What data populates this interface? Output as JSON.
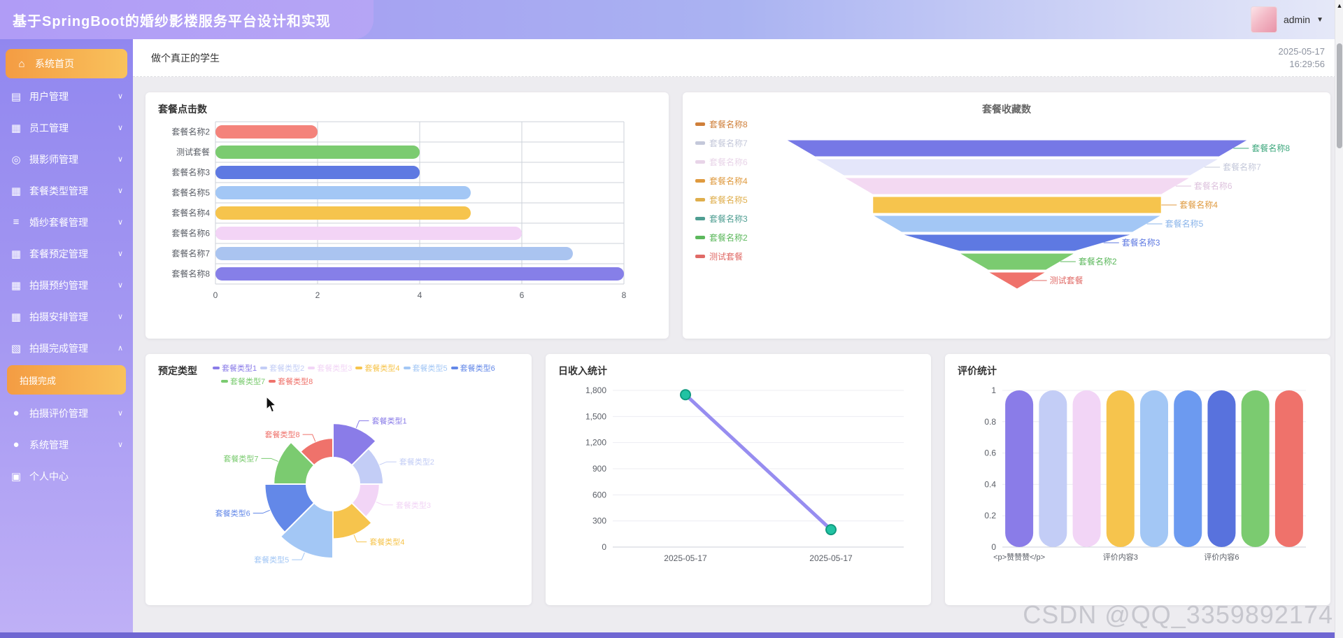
{
  "header": {
    "title": "基于SpringBoot的婚纱影楼服务平台设计和实现",
    "user": "admin",
    "caret": "▼"
  },
  "icons": {
    "chevron_down": "∨",
    "chevron_up": "∧",
    "scroll_up": "▲"
  },
  "sidebar": {
    "items": [
      {
        "label": "系统首页",
        "icon_name": "home-icon",
        "icon": "⌂",
        "active": true,
        "arrow": ""
      },
      {
        "label": "用户管理",
        "icon_name": "monitor-icon",
        "icon": "▤",
        "arrow": "down"
      },
      {
        "label": "员工管理",
        "icon_name": "grid-icon",
        "icon": "▦",
        "arrow": "down"
      },
      {
        "label": "摄影师管理",
        "icon_name": "badge-icon",
        "icon": "◎",
        "arrow": "down"
      },
      {
        "label": "套餐类型管理",
        "icon_name": "grid-icon",
        "icon": "▦",
        "arrow": "down"
      },
      {
        "label": "婚纱套餐管理",
        "icon_name": "list-icon",
        "icon": "≡",
        "arrow": "down"
      },
      {
        "label": "套餐预定管理",
        "icon_name": "grid-icon",
        "icon": "▦",
        "arrow": "down"
      },
      {
        "label": "拍摄预约管理",
        "icon_name": "grid-icon",
        "icon": "▦",
        "arrow": "down"
      },
      {
        "label": "拍摄安排管理",
        "icon_name": "grid-icon",
        "icon": "▦",
        "arrow": "down"
      },
      {
        "label": "拍摄完成管理",
        "icon_name": "chat-icon",
        "icon": "▧",
        "arrow": "up",
        "submenu": [
          {
            "label": "拍摄完成",
            "active": true
          }
        ]
      },
      {
        "label": "拍摄评价管理",
        "icon_name": "user-icon",
        "icon": "●",
        "arrow": "down"
      },
      {
        "label": "系统管理",
        "icon_name": "user-icon",
        "icon": "●",
        "arrow": "down"
      },
      {
        "label": "个人中心",
        "icon_name": "folder-icon",
        "icon": "▣",
        "arrow": ""
      }
    ]
  },
  "topbar": {
    "motto": "做个真正的学生",
    "date": "2025-05-17",
    "time": "16:29:56"
  },
  "watermark": "CSDN @QQ_3359892174",
  "chart_data": [
    {
      "id": "package-clicks",
      "type": "hbar",
      "title": "套餐点击数",
      "categories": [
        "套餐名称2",
        "测试套餐",
        "套餐名称3",
        "套餐名称5",
        "套餐名称4",
        "套餐名称6",
        "套餐名称7",
        "套餐名称8"
      ],
      "values": [
        2,
        4,
        4,
        5,
        5,
        6,
        7,
        8
      ],
      "colors": [
        "#f4837b",
        "#7bcb70",
        "#5e79e2",
        "#a3c7f5",
        "#f6c44d",
        "#f3d4f6",
        "#aac4f0",
        "#867fe8"
      ],
      "xlim": [
        0,
        8
      ],
      "xticks": [
        0,
        2,
        4,
        6,
        8
      ],
      "grid": true
    },
    {
      "id": "package-favorites",
      "type": "funnel",
      "title": "套餐收藏数",
      "legend_position": "left",
      "items": [
        {
          "name": "套餐名称8",
          "value": 8,
          "color": "#7678e6",
          "label_color": "#3fa87e",
          "legend_color": "#cf7f3a"
        },
        {
          "name": "套餐名称7",
          "value": 7,
          "color": "#e4e6fa",
          "label_color": "#c4c8da",
          "legend_color": "#c4c8da"
        },
        {
          "name": "套餐名称6",
          "value": 6,
          "color": "#f3d9f2",
          "label_color": "#ddc2dd",
          "legend_color": "#e8d4e8"
        },
        {
          "name": "套餐名称4",
          "value": 5,
          "color": "#f6c44d",
          "label_color": "#df9a3f",
          "legend_color": "#df9a3f"
        },
        {
          "name": "套餐名称5",
          "value": 5,
          "color": "#a3c7f5",
          "label_color": "#8ab4ea",
          "legend_color": "#dfae4c"
        },
        {
          "name": "套餐名称3",
          "value": 4,
          "color": "#5e79e2",
          "label_color": "#5e79e2",
          "legend_color": "#4f9e92"
        },
        {
          "name": "套餐名称2",
          "value": 2,
          "color": "#7bcb70",
          "label_color": "#5cb85c",
          "legend_color": "#5cb85c"
        },
        {
          "name": "测试套餐",
          "value": 1,
          "color": "#ef726b",
          "label_color": "#e06a66",
          "legend_color": "#e06a66"
        }
      ]
    },
    {
      "id": "booking-types",
      "type": "doughnut",
      "title": "预定类型",
      "legend_rows": [
        [
          "套餐类型1",
          "套餐类型2",
          "套餐类型3",
          "套餐类型4",
          "套餐类型5",
          "套餐类型6"
        ],
        [
          "套餐类型7",
          "套餐类型8"
        ]
      ],
      "segments": [
        {
          "name": "套餐类型1",
          "radius": 0.82,
          "color": "#8a7ce8"
        },
        {
          "name": "套餐类型2",
          "radius": 0.68,
          "color": "#c3cdf6"
        },
        {
          "name": "套餐类型3",
          "radius": 0.63,
          "color": "#f2d5f6"
        },
        {
          "name": "套餐类型4",
          "radius": 0.74,
          "color": "#f6c44d"
        },
        {
          "name": "套餐类型5",
          "radius": 1.0,
          "color": "#a3c7f5"
        },
        {
          "name": "套餐类型6",
          "radius": 0.92,
          "color": "#6388e8"
        },
        {
          "name": "套餐类型7",
          "radius": 0.8,
          "color": "#7bcb70"
        },
        {
          "name": "套餐类型8",
          "radius": 0.62,
          "color": "#ef726b"
        }
      ]
    },
    {
      "id": "daily-income",
      "type": "line",
      "title": "日收入统计",
      "x": [
        "2025-05-17",
        "2025-05-17"
      ],
      "values": [
        1750,
        200
      ],
      "ylim": [
        0,
        1800
      ],
      "yticks": [
        0,
        300,
        600,
        900,
        1200,
        1500,
        1800
      ],
      "ytick_labels": [
        "0",
        "300",
        "600",
        "900",
        "1,200",
        "1,500",
        "1,800"
      ],
      "line_color": "#978df0",
      "point_color": "#21c3a3",
      "point_border": "#119a7f"
    },
    {
      "id": "rating-stats",
      "type": "vbar",
      "title": "评价统计",
      "categories": [
        "<p>赞赞赞</p>",
        "",
        "",
        "评价内容3",
        "",
        "",
        "评价内容6",
        "",
        ""
      ],
      "values": [
        1,
        1,
        1,
        1,
        1,
        1,
        1,
        1,
        1
      ],
      "colors": [
        "#8a7ce8",
        "#c3cdf6",
        "#f2d5f6",
        "#f6c44d",
        "#a3c7f5",
        "#6c9af0",
        "#5872dd",
        "#7bcb70",
        "#ef726b"
      ],
      "ylim": [
        0,
        1
      ],
      "yticks": [
        0,
        0.2,
        0.4,
        0.6,
        0.8,
        1
      ]
    }
  ]
}
